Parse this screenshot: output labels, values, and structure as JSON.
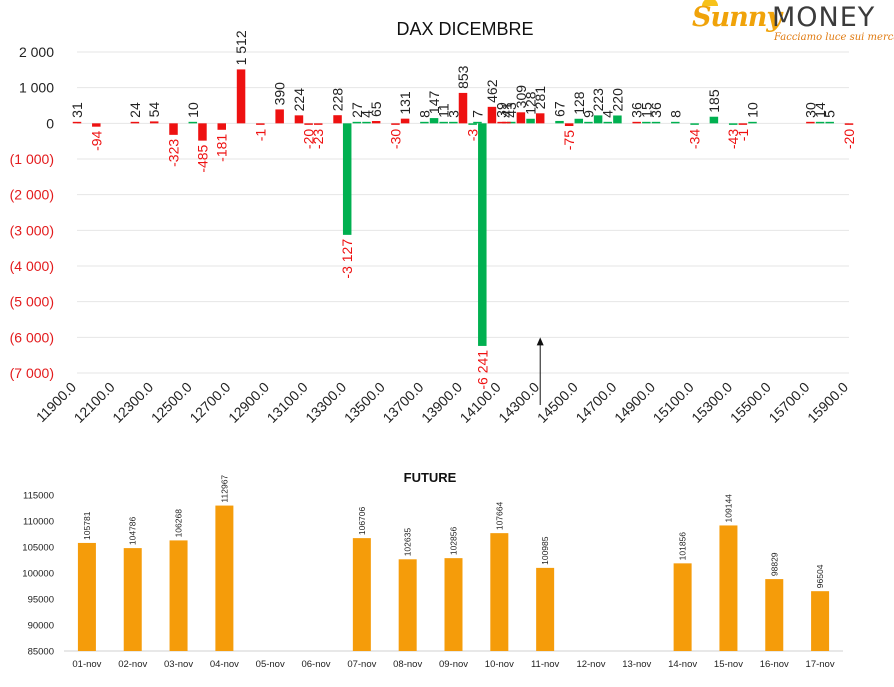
{
  "logo": {
    "word1": "Sunny",
    "word2": "MONEY",
    "tagline": "Facciamo luce sui mercati"
  },
  "colors": {
    "positive": "#00b050",
    "negative": "#ee1111",
    "future": "#f59c0a",
    "axis_neg_label": "#e31a1c"
  },
  "chart_data": [
    {
      "type": "bar",
      "title": "DAX DICEMBRE",
      "xlabel": "",
      "ylabel": "",
      "ylim": [
        -7000,
        2000
      ],
      "yticks": [
        2000,
        1000,
        0,
        -1000,
        -2000,
        -3000,
        -4000,
        -5000,
        -6000,
        -7000
      ],
      "ytick_labels": [
        "2 000",
        "1 000",
        "0",
        "(1 000)",
        "(2 000)",
        "(3 000)",
        "(4 000)",
        "(5 000)",
        "(6 000)",
        "(7 000)"
      ],
      "xrange": [
        11900,
        15900
      ],
      "xtick_values": [
        11900,
        12100,
        12300,
        12500,
        12700,
        12900,
        13100,
        13300,
        13500,
        13700,
        13900,
        14100,
        14300,
        14500,
        14700,
        14900,
        15100,
        15300,
        15500,
        15700,
        15900
      ],
      "xtick_labels": [
        "11900.0",
        "12100.0",
        "12300.0",
        "12500.0",
        "12700.0",
        "12900.0",
        "13100.0",
        "13300.0",
        "13500.0",
        "13700.0",
        "13900.0",
        "14100.0",
        "14300.0",
        "14500.0",
        "14700.0",
        "14900.0",
        "15100.0",
        "15300.0",
        "15500.0",
        "15700.0",
        "15900.0"
      ],
      "marker": {
        "x": 14300,
        "y": -6000
      },
      "series": [
        {
          "name": "Calls",
          "points": [
            {
              "x": 12500,
              "y": 10,
              "label": "10"
            },
            {
              "x": 13350,
              "y": 27,
              "label": "27"
            },
            {
              "x": 13400,
              "y": 4,
              "label": "4"
            },
            {
              "x": 13700,
              "y": 8,
              "label": "8"
            },
            {
              "x": 13750,
              "y": 147,
              "label": "147"
            },
            {
              "x": 13800,
              "y": 11,
              "label": "11"
            },
            {
              "x": 13850,
              "y": 3,
              "label": "3"
            },
            {
              "x": 13950,
              "y": -3,
              "label": "-3"
            },
            {
              "x": 13975,
              "y": 7,
              "label": "7"
            },
            {
              "x": 14000,
              "y": -6241,
              "label": "-6 241"
            },
            {
              "x": 14150,
              "y": 43,
              "label": "43"
            },
            {
              "x": 14250,
              "y": 128,
              "label": "128"
            },
            {
              "x": 14400,
              "y": 67,
              "label": "67"
            },
            {
              "x": 14500,
              "y": 128,
              "label": "128"
            },
            {
              "x": 14550,
              "y": 9,
              "label": "9"
            },
            {
              "x": 14600,
              "y": 223,
              "label": "223"
            },
            {
              "x": 14650,
              "y": 4,
              "label": "4"
            },
            {
              "x": 14700,
              "y": 220,
              "label": "220"
            },
            {
              "x": 14850,
              "y": 15,
              "label": "15"
            },
            {
              "x": 14900,
              "y": 36,
              "label": "36"
            },
            {
              "x": 15000,
              "y": 8,
              "label": "8"
            },
            {
              "x": 15100,
              "y": -34,
              "label": "-34"
            },
            {
              "x": 15200,
              "y": 185,
              "label": "185"
            },
            {
              "x": 15300,
              "y": -43,
              "label": "-43"
            },
            {
              "x": 15400,
              "y": 10,
              "label": "10"
            },
            {
              "x": 15750,
              "y": 14,
              "label": "14"
            },
            {
              "x": 15800,
              "y": 5,
              "label": "5"
            },
            {
              "x": 13300,
              "y": -3127,
              "label": "-3 127"
            }
          ]
        },
        {
          "name": "Puts",
          "points": [
            {
              "x": 11900,
              "y": 31,
              "label": "31"
            },
            {
              "x": 12000,
              "y": -94,
              "label": "-94"
            },
            {
              "x": 12200,
              "y": 24,
              "label": "24"
            },
            {
              "x": 12300,
              "y": 54,
              "label": "54"
            },
            {
              "x": 12400,
              "y": -323,
              "label": "-323"
            },
            {
              "x": 12550,
              "y": -485,
              "label": "-485"
            },
            {
              "x": 12650,
              "y": -181,
              "label": "-181"
            },
            {
              "x": 12750,
              "y": 1512,
              "label": "1 512"
            },
            {
              "x": 12850,
              "y": -1,
              "label": "-1"
            },
            {
              "x": 12950,
              "y": 390,
              "label": "390"
            },
            {
              "x": 13050,
              "y": 224,
              "label": "224"
            },
            {
              "x": 13100,
              "y": -20,
              "label": "-20"
            },
            {
              "x": 13150,
              "y": -23,
              "label": "-23"
            },
            {
              "x": 13250,
              "y": 228,
              "label": "228"
            },
            {
              "x": 13450,
              "y": 65,
              "label": "65"
            },
            {
              "x": 13550,
              "y": -30,
              "label": "-30"
            },
            {
              "x": 13600,
              "y": 131,
              "label": "131"
            },
            {
              "x": 13900,
              "y": 853,
              "label": "853"
            },
            {
              "x": 14050,
              "y": 462,
              "label": "462"
            },
            {
              "x": 14100,
              "y": 39,
              "label": "39"
            },
            {
              "x": 14125,
              "y": 41,
              "label": "41"
            },
            {
              "x": 14200,
              "y": 309,
              "label": "309"
            },
            {
              "x": 14300,
              "y": 281,
              "label": "281"
            },
            {
              "x": 14450,
              "y": -75,
              "label": "-75"
            },
            {
              "x": 14800,
              "y": 36,
              "label": "36"
            },
            {
              "x": 15350,
              "y": -1,
              "label": "-1"
            },
            {
              "x": 15700,
              "y": 30,
              "label": "30"
            },
            {
              "x": 15900,
              "y": -20,
              "label": "-20"
            }
          ]
        }
      ]
    },
    {
      "type": "bar",
      "title": "FUTURE",
      "xlabel": "",
      "ylabel": "",
      "ylim": [
        85000,
        115000
      ],
      "yticks": [
        85000,
        90000,
        95000,
        100000,
        105000,
        110000,
        115000
      ],
      "categories": [
        "01-nov",
        "02-nov",
        "03-nov",
        "04-nov",
        "05-nov",
        "06-nov",
        "07-nov",
        "08-nov",
        "09-nov",
        "10-nov",
        "11-nov",
        "12-nov",
        "13-nov",
        "14-nov",
        "15-nov",
        "16-nov",
        "17-nov"
      ],
      "values": [
        105781,
        104786,
        106268,
        112967,
        null,
        null,
        106706,
        102635,
        102856,
        107664,
        100985,
        null,
        null,
        101856,
        109144,
        98829,
        96504
      ]
    }
  ]
}
